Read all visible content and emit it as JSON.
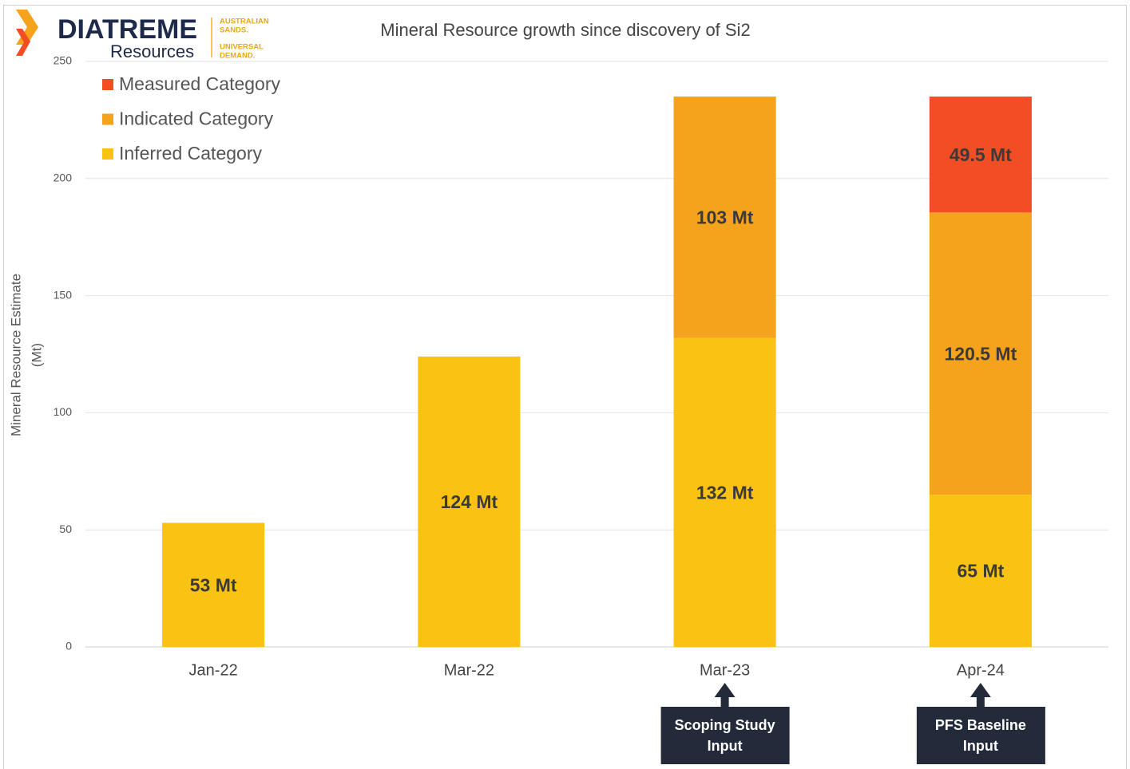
{
  "chart_data": {
    "type": "stacked_bar",
    "title": "Mineral Resource growth since discovery of Si2",
    "ylabel": [
      "Mineral Resource Estimate",
      "(Mt)"
    ],
    "logo": {
      "name": "DIATREME",
      "sub": "Resources",
      "tag1": [
        "AUSTRALIAN",
        "SANDS."
      ],
      "tag2": [
        "UNIVERSAL",
        "DEMAND."
      ]
    },
    "categories": [
      "Jan-22",
      "Mar-22",
      "Mar-23",
      "Apr-24"
    ],
    "series": [
      {
        "name": "Inferred Category",
        "color": "#FAC213",
        "values": [
          53,
          124,
          132,
          65
        ],
        "value_labels": [
          "53 Mt",
          "124 Mt",
          "132 Mt",
          "65 Mt"
        ]
      },
      {
        "name": "Indicated Category",
        "color": "#F5A21D",
        "values": [
          null,
          null,
          103,
          120.5
        ],
        "value_labels": [
          null,
          null,
          "103 Mt",
          "120.5 Mt"
        ]
      },
      {
        "name": "Measured Category",
        "color": "#F24E26",
        "values": [
          null,
          null,
          null,
          49.5
        ],
        "value_labels": [
          null,
          null,
          null,
          "49.5 Mt"
        ]
      }
    ],
    "ylim": [
      0,
      250
    ],
    "yticks": [
      0,
      50,
      100,
      150,
      200,
      250
    ],
    "grid": true,
    "legend": "upper left",
    "annotations": [
      [
        "Scoping Study",
        "Input"
      ],
      [
        "PFS Baseline",
        "Input"
      ]
    ]
  }
}
